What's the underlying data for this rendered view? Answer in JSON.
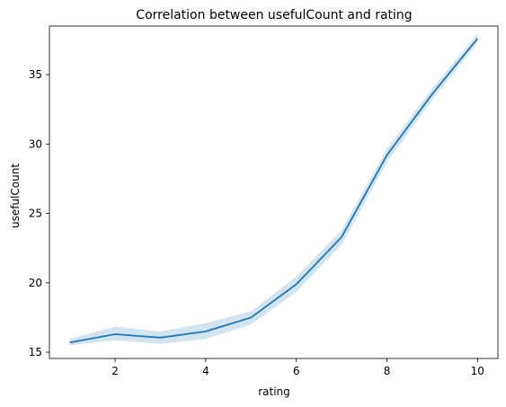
{
  "chart_data": {
    "type": "line",
    "title": "Correlation between usefulCount and rating",
    "xlabel": "rating",
    "ylabel": "usefulCount",
    "xlim": [
      0.55,
      10.45
    ],
    "ylim": [
      14.55,
      38.5
    ],
    "xticks": [
      2,
      4,
      6,
      8,
      10
    ],
    "yticks": [
      15,
      20,
      25,
      30,
      35
    ],
    "grid": false,
    "x": [
      1,
      2,
      3,
      4,
      5,
      6,
      7,
      8,
      9,
      10
    ],
    "series": [
      {
        "values": [
          15.7,
          16.3,
          16.05,
          16.5,
          17.5,
          19.9,
          23.3,
          29.2,
          33.6,
          37.6
        ],
        "ci_lower": [
          15.5,
          15.85,
          15.6,
          15.95,
          17.0,
          19.35,
          22.75,
          28.7,
          33.2,
          37.3
        ],
        "ci_upper": [
          15.95,
          16.85,
          16.5,
          17.1,
          17.95,
          20.45,
          23.8,
          29.65,
          34.0,
          37.95
        ],
        "color": "#1f77b4"
      }
    ]
  }
}
